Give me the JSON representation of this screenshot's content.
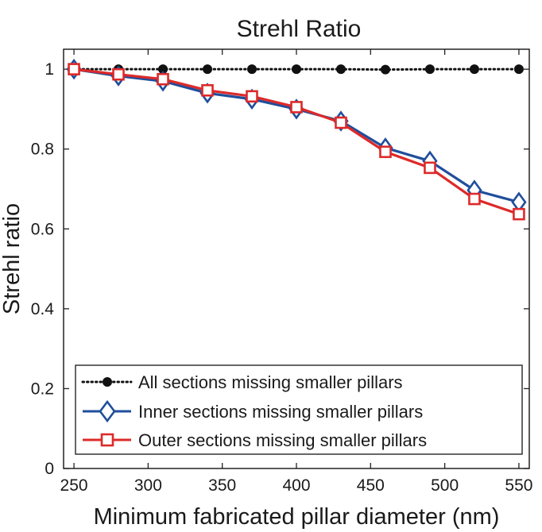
{
  "chart_data": {
    "type": "line",
    "title": "Strehl Ratio",
    "xlabel": "Minimum fabricated pillar diameter (nm)",
    "ylabel": "Strehl ratio",
    "xlim": [
      243,
      557
    ],
    "ylim": [
      0,
      1.05
    ],
    "xticks": [
      250,
      300,
      350,
      400,
      450,
      500,
      550
    ],
    "yticks": [
      0,
      0.2,
      0.4,
      0.6,
      0.8,
      1
    ],
    "ytick_labels": [
      "0",
      "0.2",
      "0.4",
      "0.6",
      "0.8",
      "1"
    ],
    "x": [
      250,
      280,
      310,
      340,
      370,
      400,
      430,
      460,
      490,
      520,
      550
    ],
    "legend_position": "bottom-center",
    "series": [
      {
        "name": "All sections missing smaller pillars",
        "color": "#111111",
        "marker": "circle",
        "line_style": "dotted",
        "values": [
          1.0,
          1.0,
          1.0,
          1.0,
          1.0,
          1.0,
          1.0,
          0.999,
          1.0,
          1.0,
          1.0
        ]
      },
      {
        "name": "Inner sections missing smaller pillars",
        "color": "#1f4e9c",
        "marker": "diamond",
        "line_style": "solid",
        "values": [
          1.0,
          0.983,
          0.97,
          0.94,
          0.925,
          0.9,
          0.87,
          0.803,
          0.77,
          0.697,
          0.667
        ]
      },
      {
        "name": "Outer sections missing smaller pillars",
        "color": "#dd2a2a",
        "marker": "square",
        "line_style": "solid",
        "values": [
          1.0,
          0.987,
          0.975,
          0.947,
          0.932,
          0.905,
          0.866,
          0.793,
          0.753,
          0.675,
          0.637
        ]
      }
    ]
  }
}
